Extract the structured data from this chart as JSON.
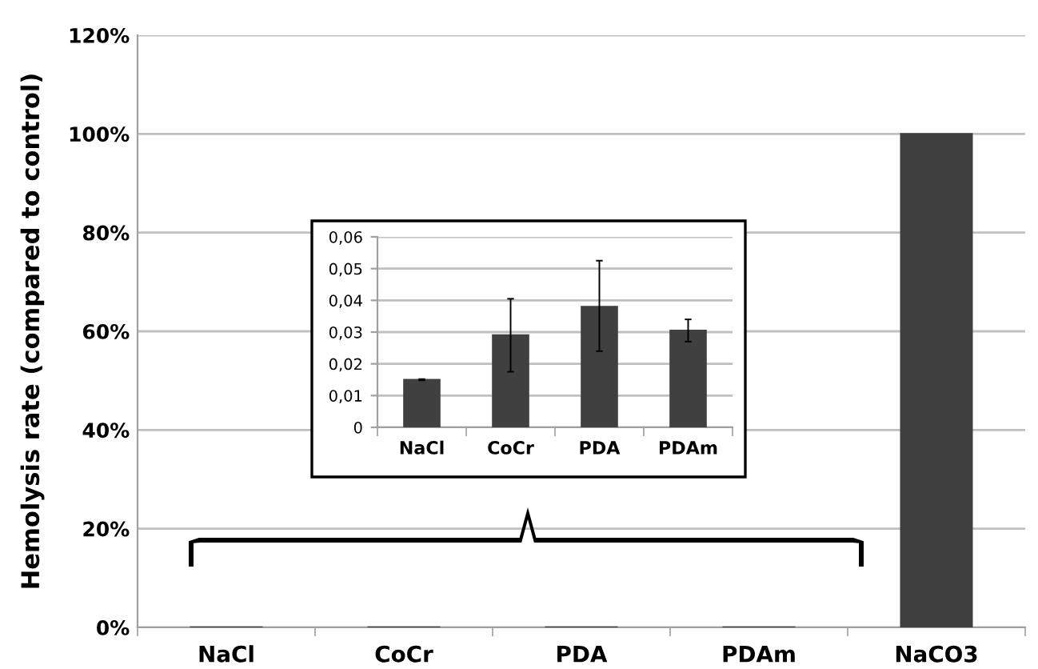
{
  "chart_data": [
    {
      "type": "bar",
      "ylabel": "Hemolysis rate (compared to control)",
      "categories": [
        "NaCl",
        "CoCr",
        "PDA",
        "PDAm",
        "NaCO3"
      ],
      "series": [
        {
          "color": "#404040",
          "values": [
            0.015,
            0.029,
            0.038,
            0.0305,
            100
          ]
        }
      ],
      "ylim": [
        0,
        120
      ],
      "yticks": [
        {
          "value": 0,
          "label": "0%"
        },
        {
          "value": 20,
          "label": "20%"
        },
        {
          "value": 40,
          "label": "40%"
        },
        {
          "value": 60,
          "label": "60%"
        },
        {
          "value": 80,
          "label": "80%"
        },
        {
          "value": 100,
          "label": "100%"
        },
        {
          "value": 120,
          "label": "120%"
        }
      ],
      "grid": "y",
      "legend": false
    },
    {
      "type": "bar",
      "categories": [
        "NaCl",
        "CoCr",
        "PDA",
        "PDAm"
      ],
      "series": [
        {
          "color": "#404040",
          "values": [
            0.015,
            0.029,
            0.038,
            0.0305
          ],
          "errors": [
            0.0002,
            [
              0.0175,
              0.0405
            ],
            [
              0.024,
              0.0525
            ],
            [
              0.027,
              0.034
            ]
          ]
        }
      ],
      "ylim": [
        0,
        0.06
      ],
      "yticks": [
        {
          "value": 0,
          "label": "0"
        },
        {
          "value": 0.01,
          "label": "0,01"
        },
        {
          "value": 0.02,
          "label": "0,02"
        },
        {
          "value": 0.03,
          "label": "0,03"
        },
        {
          "value": 0.04,
          "label": "0,04"
        },
        {
          "value": 0.05,
          "label": "0,05"
        },
        {
          "value": 0.06,
          "label": "0,06"
        }
      ],
      "grid": "y",
      "legend": false
    }
  ]
}
